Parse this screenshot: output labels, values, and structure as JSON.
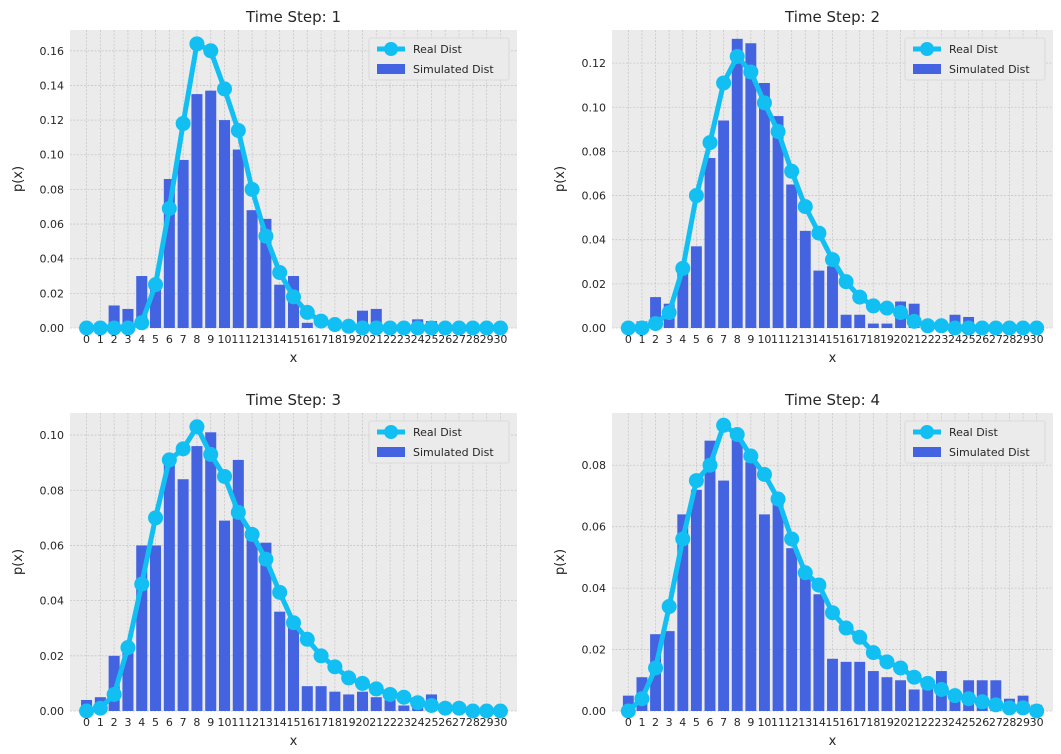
{
  "legend": {
    "real_label": "Real Dist",
    "sim_label": "Simulated Dist",
    "placement": "top-right"
  },
  "colors": {
    "real": "#12BFF2",
    "simulated": "#4363E0",
    "background": "#EBEBEB",
    "grid": "#C8C8C8"
  },
  "chart_data": [
    {
      "type": "bar",
      "title": "Time Step: 1",
      "xlabel": "x",
      "ylabel": "p(x)",
      "grid": true,
      "x": [
        0,
        1,
        2,
        3,
        4,
        5,
        6,
        7,
        8,
        9,
        10,
        11,
        12,
        13,
        14,
        15,
        16,
        17,
        18,
        19,
        20,
        21,
        22,
        23,
        24,
        25,
        26,
        27,
        28,
        29,
        30
      ],
      "xticks": [
        "0",
        "1",
        "2",
        "3",
        "4",
        "5",
        "6",
        "7",
        "8",
        "9",
        "10",
        "11",
        "12",
        "13",
        "14",
        "15",
        "16",
        "17",
        "18",
        "19",
        "20",
        "21",
        "22",
        "23",
        "24",
        "25",
        "26",
        "27",
        "28",
        "29",
        "30"
      ],
      "ylim": [
        0,
        0.172
      ],
      "yticks": [
        "0.00",
        "0.02",
        "0.04",
        "0.06",
        "0.08",
        "0.10",
        "0.12",
        "0.14",
        "0.16"
      ],
      "series": [
        {
          "name": "Simulated Dist",
          "kind": "bar",
          "values": [
            0,
            0,
            0.013,
            0.011,
            0.03,
            0.025,
            0.086,
            0.097,
            0.135,
            0.137,
            0.12,
            0.103,
            0.068,
            0.063,
            0.025,
            0.03,
            0.003,
            0,
            0,
            0,
            0.01,
            0.011,
            0,
            0,
            0.005,
            0.004,
            0,
            0,
            0,
            0,
            0
          ]
        },
        {
          "name": "Real Dist",
          "kind": "line",
          "values": [
            0,
            0,
            0,
            0,
            0.003,
            0.025,
            0.069,
            0.118,
            0.164,
            0.16,
            0.138,
            0.114,
            0.08,
            0.053,
            0.032,
            0.018,
            0.009,
            0.004,
            0.002,
            0.001,
            0,
            0,
            0,
            0,
            0,
            0,
            0,
            0,
            0,
            0,
            0
          ]
        }
      ]
    },
    {
      "type": "bar",
      "title": "Time Step: 2",
      "xlabel": "x",
      "ylabel": "p(x)",
      "grid": true,
      "x": [
        0,
        1,
        2,
        3,
        4,
        5,
        6,
        7,
        8,
        9,
        10,
        11,
        12,
        13,
        14,
        15,
        16,
        17,
        18,
        19,
        20,
        21,
        22,
        23,
        24,
        25,
        26,
        27,
        28,
        29,
        30
      ],
      "xticks": [
        "0",
        "1",
        "2",
        "3",
        "4",
        "5",
        "6",
        "7",
        "8",
        "9",
        "10",
        "11",
        "12",
        "13",
        "14",
        "15",
        "16",
        "17",
        "18",
        "19",
        "20",
        "21",
        "22",
        "23",
        "24",
        "25",
        "26",
        "27",
        "28",
        "29",
        "30"
      ],
      "ylim": [
        0,
        0.135
      ],
      "yticks": [
        "0.00",
        "0.02",
        "0.04",
        "0.06",
        "0.08",
        "0.10",
        "0.12"
      ],
      "series": [
        {
          "name": "Simulated Dist",
          "kind": "bar",
          "values": [
            0,
            0.003,
            0.014,
            0.011,
            0.027,
            0.037,
            0.077,
            0.094,
            0.131,
            0.129,
            0.111,
            0.096,
            0.065,
            0.044,
            0.026,
            0.028,
            0.006,
            0.006,
            0.002,
            0.002,
            0.012,
            0.011,
            0,
            0,
            0.006,
            0.005,
            0,
            0,
            0,
            0,
            0
          ]
        },
        {
          "name": "Real Dist",
          "kind": "line",
          "values": [
            0,
            0,
            0.002,
            0.007,
            0.027,
            0.06,
            0.084,
            0.111,
            0.123,
            0.116,
            0.102,
            0.089,
            0.071,
            0.055,
            0.043,
            0.031,
            0.021,
            0.014,
            0.01,
            0.009,
            0.007,
            0.003,
            0.001,
            0.001,
            0,
            0,
            0,
            0,
            0,
            0,
            0
          ]
        }
      ]
    },
    {
      "type": "bar",
      "title": "Time Step: 3",
      "xlabel": "x",
      "ylabel": "p(x)",
      "grid": true,
      "x": [
        0,
        1,
        2,
        3,
        4,
        5,
        6,
        7,
        8,
        9,
        10,
        11,
        12,
        13,
        14,
        15,
        16,
        17,
        18,
        19,
        20,
        21,
        22,
        23,
        24,
        25,
        26,
        27,
        28,
        29,
        30
      ],
      "xticks": [
        "0",
        "1",
        "2",
        "3",
        "4",
        "5",
        "6",
        "7",
        "8",
        "9",
        "10",
        "11",
        "12",
        "13",
        "14",
        "15",
        "16",
        "17",
        "18",
        "19",
        "20",
        "21",
        "22",
        "23",
        "24",
        "25",
        "26",
        "27",
        "28",
        "29",
        "30"
      ],
      "ylim": [
        0,
        0.108
      ],
      "yticks": [
        "0.00",
        "0.02",
        "0.04",
        "0.06",
        "0.08",
        "0.10"
      ],
      "series": [
        {
          "name": "Simulated Dist",
          "kind": "bar",
          "values": [
            0.004,
            0.005,
            0.02,
            0.024,
            0.06,
            0.06,
            0.092,
            0.084,
            0.096,
            0.101,
            0.069,
            0.091,
            0.065,
            0.061,
            0.036,
            0.033,
            0.009,
            0.009,
            0.007,
            0.006,
            0.007,
            0.005,
            0.004,
            0.002,
            0.005,
            0.006,
            0.003,
            0.002,
            0,
            0,
            0
          ]
        },
        {
          "name": "Real Dist",
          "kind": "line",
          "values": [
            0,
            0.001,
            0.006,
            0.023,
            0.046,
            0.07,
            0.091,
            0.095,
            0.103,
            0.093,
            0.085,
            0.072,
            0.064,
            0.055,
            0.043,
            0.032,
            0.026,
            0.02,
            0.016,
            0.012,
            0.01,
            0.008,
            0.006,
            0.005,
            0.003,
            0.002,
            0.001,
            0.001,
            0,
            0,
            0
          ]
        }
      ]
    },
    {
      "type": "bar",
      "title": "Time Step: 4",
      "xlabel": "x",
      "ylabel": "p(x)",
      "grid": true,
      "x": [
        0,
        1,
        2,
        3,
        4,
        5,
        6,
        7,
        8,
        9,
        10,
        11,
        12,
        13,
        14,
        15,
        16,
        17,
        18,
        19,
        20,
        21,
        22,
        23,
        24,
        25,
        26,
        27,
        28,
        29,
        30
      ],
      "xticks": [
        "0",
        "1",
        "2",
        "3",
        "4",
        "5",
        "6",
        "7",
        "8",
        "9",
        "10",
        "11",
        "12",
        "13",
        "14",
        "15",
        "16",
        "17",
        "18",
        "19",
        "20",
        "21",
        "22",
        "23",
        "24",
        "25",
        "26",
        "27",
        "28",
        "29",
        "30"
      ],
      "ylim": [
        0,
        0.097
      ],
      "yticks": [
        "0.00",
        "0.02",
        "0.04",
        "0.06",
        "0.08"
      ],
      "series": [
        {
          "name": "Simulated Dist",
          "kind": "bar",
          "values": [
            0.005,
            0.011,
            0.025,
            0.026,
            0.064,
            0.072,
            0.088,
            0.075,
            0.09,
            0.081,
            0.064,
            0.07,
            0.053,
            0.046,
            0.038,
            0.017,
            0.016,
            0.016,
            0.013,
            0.011,
            0.01,
            0.007,
            0.009,
            0.013,
            0.005,
            0.01,
            0.01,
            0.01,
            0.004,
            0.005,
            0.002
          ]
        },
        {
          "name": "Real Dist",
          "kind": "line",
          "values": [
            0,
            0.004,
            0.014,
            0.034,
            0.056,
            0.075,
            0.08,
            0.093,
            0.09,
            0.083,
            0.077,
            0.069,
            0.056,
            0.045,
            0.041,
            0.032,
            0.027,
            0.024,
            0.019,
            0.016,
            0.014,
            0.011,
            0.009,
            0.007,
            0.005,
            0.004,
            0.003,
            0.002,
            0.001,
            0.001,
            0
          ]
        }
      ]
    }
  ]
}
